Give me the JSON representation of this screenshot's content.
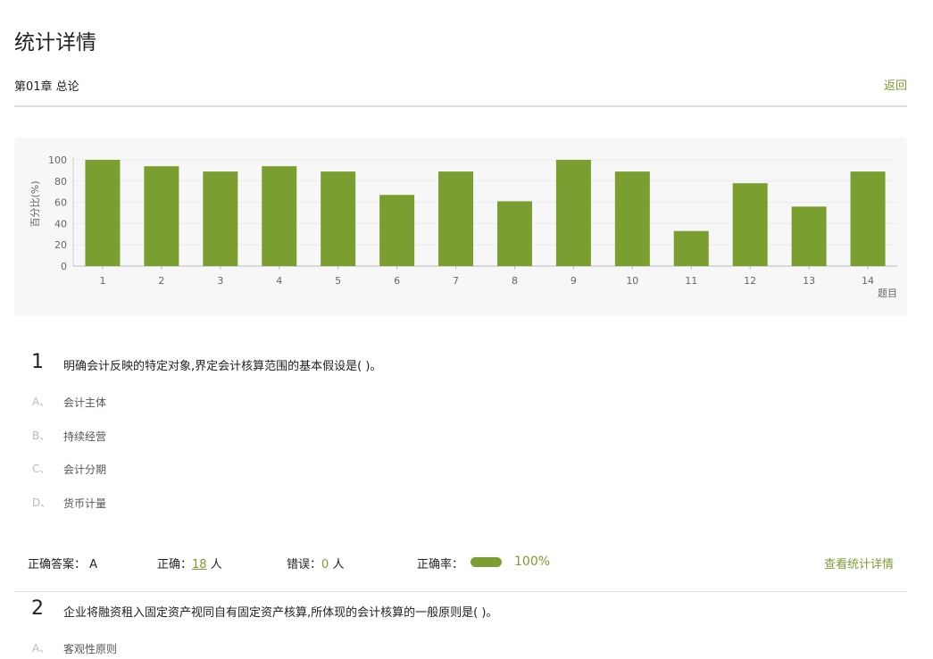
{
  "header": {
    "title": "统计详情",
    "chapter": "第01章 总论",
    "back_label": "返回"
  },
  "chart_data": {
    "type": "bar",
    "ylabel": "百分比(%)",
    "xlabel": "题目",
    "categories": [
      "1",
      "2",
      "3",
      "4",
      "5",
      "6",
      "7",
      "8",
      "9",
      "10",
      "11",
      "12",
      "13",
      "14"
    ],
    "values": [
      100,
      94,
      89,
      94,
      89,
      67,
      89,
      61,
      100,
      89,
      33,
      78,
      56,
      89
    ],
    "ylim": [
      0,
      100
    ],
    "yticks": [
      "0",
      "20",
      "40",
      "60",
      "80",
      "100"
    ],
    "grid": true,
    "color": "#7a9e2f"
  },
  "questions": [
    {
      "number": "1",
      "text": "明确会计反映的特定对象,界定会计核算范围的基本假设是( )。",
      "options": [
        {
          "letter": "A、",
          "text": "会计主体"
        },
        {
          "letter": "B、",
          "text": "持续经营"
        },
        {
          "letter": "C、",
          "text": "会计分期"
        },
        {
          "letter": "D、",
          "text": "货币计量"
        }
      ],
      "stats": {
        "answer_label": "正确答案：",
        "answer": "A",
        "correct_label": "正确：",
        "correct": "18",
        "unit": "人",
        "wrong_label": "错误：",
        "wrong": "0",
        "rate_label": "正确率：",
        "rate": "100%",
        "rate_value": 100,
        "detail_link": "查看统计详情"
      }
    },
    {
      "number": "2",
      "text": "企业将融资租入固定资产视同自有固定资产核算,所体现的会计核算的一般原则是( )。",
      "options": [
        {
          "letter": "A、",
          "text": "客观性原则"
        }
      ]
    }
  ]
}
